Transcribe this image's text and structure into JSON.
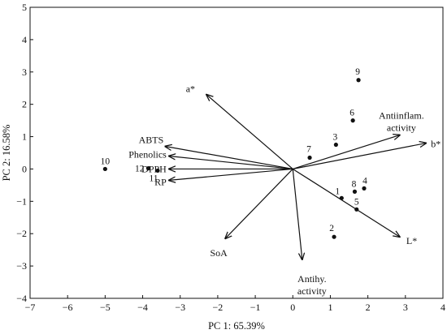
{
  "chart_data": {
    "type": "scatter",
    "xlabel": "PC 1: 65.39%",
    "ylabel": "PC 2: 16.58%",
    "xlim": [
      -7,
      4
    ],
    "ylim": [
      -4,
      5
    ],
    "xticks": [
      "−7",
      "−6",
      "−5",
      "−4",
      "−3",
      "−2",
      "−1",
      "0",
      "1",
      "2",
      "3",
      "4"
    ],
    "yticks": [
      "−4",
      "−3",
      "−2",
      "−1",
      "0",
      "1",
      "2",
      "3",
      "4",
      "5"
    ],
    "points": [
      {
        "label": "1",
        "x": 1.3,
        "y": -0.9
      },
      {
        "label": "2",
        "x": 1.1,
        "y": -2.1
      },
      {
        "label": "3",
        "x": 1.15,
        "y": 0.75
      },
      {
        "label": "4",
        "x": 1.9,
        "y": -0.6
      },
      {
        "label": "5",
        "x": 1.7,
        "y": -1.25
      },
      {
        "label": "6",
        "x": 1.6,
        "y": 1.5
      },
      {
        "label": "7",
        "x": 0.45,
        "y": 0.35
      },
      {
        "label": "8",
        "x": 1.65,
        "y": -0.7
      },
      {
        "label": "9",
        "x": 1.75,
        "y": 2.75
      },
      {
        "label": "10",
        "x": -5.0,
        "y": 0.0
      },
      {
        "label": "11",
        "x": -3.6,
        "y": -0.05
      },
      {
        "label": "12",
        "x": -3.85,
        "y": 0.02
      }
    ],
    "vectors": [
      {
        "label": "a*",
        "x": -2.3,
        "y": 2.3
      },
      {
        "label": "ABTS",
        "x": -3.4,
        "y": 0.7
      },
      {
        "label": "Phenolics",
        "x": -3.3,
        "y": 0.4
      },
      {
        "label": "DPPH",
        "x": -3.3,
        "y": 0.0
      },
      {
        "label": "RP",
        "x": -3.3,
        "y": -0.35
      },
      {
        "label": "SoA",
        "x": -1.8,
        "y": -2.15
      },
      {
        "label": "Antihy.",
        "label2": "activity",
        "x": 0.25,
        "y": -2.8
      },
      {
        "label": "L*",
        "x": 2.85,
        "y": -2.1
      },
      {
        "label": "Antiinflam.",
        "label2": "activity",
        "x": 2.85,
        "y": 1.05
      },
      {
        "label": "b*",
        "x": 3.55,
        "y": 0.8
      }
    ]
  }
}
